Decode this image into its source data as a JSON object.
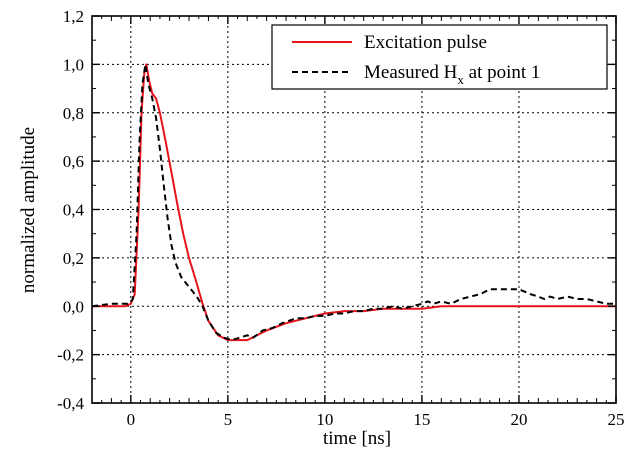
{
  "chart_data": {
    "type": "line",
    "xlabel": "time  [ns]",
    "ylabel": "normalized amplitude",
    "xlim": [
      -2,
      25
    ],
    "ylim": [
      -0.4,
      1.2
    ],
    "x_ticks": [
      "0",
      "5",
      "10",
      "15",
      "20",
      "25"
    ],
    "y_ticks": [
      "-0,4",
      "-0,2",
      "0,0",
      "0,2",
      "0,4",
      "0,6",
      "0,8",
      "1,0",
      "1,2"
    ],
    "grid": true,
    "legend_position": "top-right",
    "series": [
      {
        "name": "Excitation pulse",
        "color": "#e8141c",
        "style": "solid",
        "points": [
          [
            -2,
            0.0
          ],
          [
            -1,
            0.0
          ],
          [
            -0.3,
            0.0
          ],
          [
            0,
            0.01
          ],
          [
            0.2,
            0.05
          ],
          [
            0.4,
            0.4
          ],
          [
            0.55,
            0.8
          ],
          [
            0.7,
            0.97
          ],
          [
            0.8,
            1.0
          ],
          [
            0.95,
            0.93
          ],
          [
            1.1,
            0.88
          ],
          [
            1.3,
            0.86
          ],
          [
            1.5,
            0.8
          ],
          [
            1.8,
            0.68
          ],
          [
            2.1,
            0.55
          ],
          [
            2.4,
            0.42
          ],
          [
            2.7,
            0.3
          ],
          [
            3.0,
            0.2
          ],
          [
            3.3,
            0.12
          ],
          [
            3.7,
            0.01
          ],
          [
            4.0,
            -0.06
          ],
          [
            4.5,
            -0.12
          ],
          [
            5.0,
            -0.14
          ],
          [
            5.5,
            -0.14
          ],
          [
            6.0,
            -0.14
          ],
          [
            7.0,
            -0.1
          ],
          [
            8.0,
            -0.07
          ],
          [
            9.0,
            -0.05
          ],
          [
            10.0,
            -0.03
          ],
          [
            11.0,
            -0.02
          ],
          [
            12.0,
            -0.02
          ],
          [
            13.0,
            -0.01
          ],
          [
            14.0,
            -0.01
          ],
          [
            15.0,
            -0.01
          ],
          [
            16.0,
            0.0
          ],
          [
            18.0,
            0.0
          ],
          [
            20.0,
            0.0
          ],
          [
            22.0,
            0.0
          ],
          [
            25.0,
            0.0
          ]
        ]
      },
      {
        "name": "Measured H_x at point 1",
        "color": "#000000",
        "style": "dashed",
        "points": [
          [
            -2,
            0.0
          ],
          [
            -1,
            0.01
          ],
          [
            -0.5,
            0.01
          ],
          [
            -0.1,
            0.01
          ],
          [
            0.1,
            0.03
          ],
          [
            0.3,
            0.3
          ],
          [
            0.45,
            0.68
          ],
          [
            0.6,
            0.92
          ],
          [
            0.75,
            1.0
          ],
          [
            0.9,
            0.92
          ],
          [
            1.1,
            0.86
          ],
          [
            1.3,
            0.78
          ],
          [
            1.5,
            0.65
          ],
          [
            1.7,
            0.5
          ],
          [
            1.9,
            0.36
          ],
          [
            2.1,
            0.25
          ],
          [
            2.3,
            0.18
          ],
          [
            2.6,
            0.12
          ],
          [
            3.0,
            0.08
          ],
          [
            3.4,
            0.04
          ],
          [
            3.7,
            0.0
          ],
          [
            4.0,
            -0.06
          ],
          [
            4.4,
            -0.11
          ],
          [
            4.8,
            -0.13
          ],
          [
            5.2,
            -0.14
          ],
          [
            5.6,
            -0.13
          ],
          [
            6.0,
            -0.12
          ],
          [
            6.3,
            -0.13
          ],
          [
            6.8,
            -0.1
          ],
          [
            7.3,
            -0.09
          ],
          [
            7.8,
            -0.07
          ],
          [
            8.5,
            -0.05
          ],
          [
            9.0,
            -0.05
          ],
          [
            9.5,
            -0.04
          ],
          [
            10.0,
            -0.04
          ],
          [
            10.5,
            -0.03
          ],
          [
            11.0,
            -0.03
          ],
          [
            11.5,
            -0.02
          ],
          [
            12.0,
            -0.02
          ],
          [
            12.5,
            -0.01
          ],
          [
            13.0,
            -0.01
          ],
          [
            13.5,
            0.0
          ],
          [
            14.0,
            -0.01
          ],
          [
            14.5,
            0.0
          ],
          [
            15.0,
            0.01
          ],
          [
            15.3,
            0.02
          ],
          [
            15.6,
            0.01
          ],
          [
            16.0,
            0.02
          ],
          [
            16.5,
            0.01
          ],
          [
            17.0,
            0.03
          ],
          [
            17.5,
            0.04
          ],
          [
            18.0,
            0.05
          ],
          [
            18.5,
            0.07
          ],
          [
            19.0,
            0.07
          ],
          [
            19.5,
            0.07
          ],
          [
            20.0,
            0.07
          ],
          [
            20.3,
            0.06
          ],
          [
            20.6,
            0.05
          ],
          [
            21.0,
            0.04
          ],
          [
            21.3,
            0.03
          ],
          [
            21.6,
            0.04
          ],
          [
            22.0,
            0.03
          ],
          [
            22.5,
            0.04
          ],
          [
            23.0,
            0.03
          ],
          [
            23.5,
            0.03
          ],
          [
            24.0,
            0.02
          ],
          [
            24.5,
            0.01
          ],
          [
            25.0,
            0.01
          ]
        ]
      }
    ]
  },
  "legend": {
    "entry1": "Excitation pulse",
    "entry2_main": "Measured H",
    "entry2_sub": "x",
    "entry2_tail": " at point 1"
  }
}
